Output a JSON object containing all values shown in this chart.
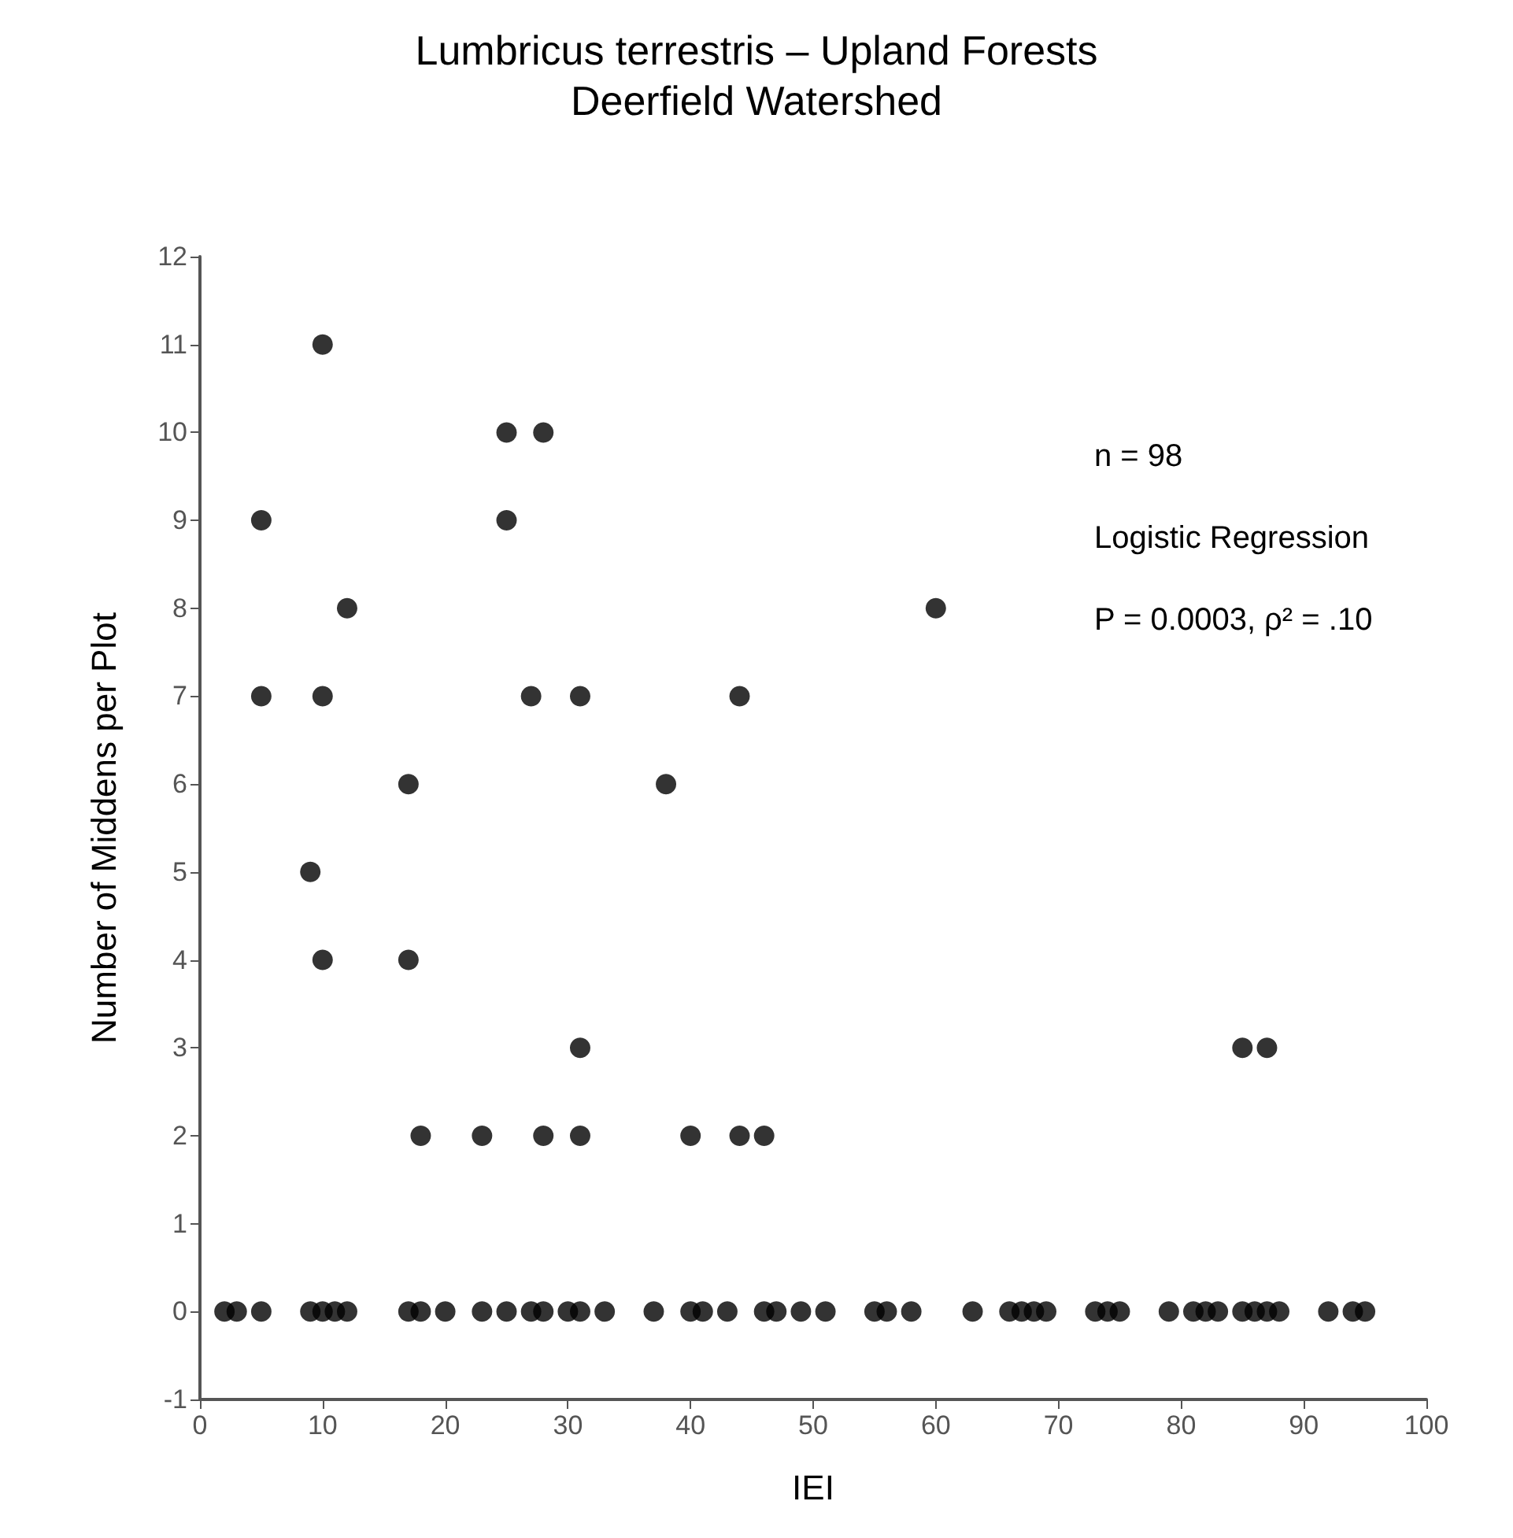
{
  "chart_data": {
    "type": "scatter",
    "title": "Lumbricus terrestris – Upland Forests",
    "subtitle": "Deerfield Watershed",
    "xlabel": "IEI",
    "ylabel": "Number of Middens per Plot",
    "annotations": [
      "n = 98",
      "Logistic Regression",
      "P = 0.0003, ρ² = .10"
    ],
    "x": [
      5,
      5,
      10,
      10,
      12,
      9,
      10,
      17,
      17,
      18,
      23,
      25,
      28,
      25,
      27,
      31,
      31,
      31,
      28,
      38,
      40,
      44,
      44,
      46,
      60,
      85,
      87,
      2,
      3,
      5,
      9,
      10,
      11,
      12,
      17,
      18,
      20,
      23,
      25,
      27,
      28,
      30,
      31,
      33,
      37,
      40,
      41,
      43,
      46,
      47,
      49,
      51,
      55,
      56,
      58,
      63,
      66,
      67,
      68,
      69,
      73,
      74,
      75,
      79,
      81,
      82,
      83,
      85,
      86,
      87,
      88,
      92,
      94,
      95
    ],
    "series": [
      {
        "color": "#000000",
        "values": [
          9,
          7,
          11,
          7,
          8,
          5,
          4,
          6,
          4,
          2,
          2,
          10,
          10,
          9,
          7,
          7,
          3,
          2,
          2,
          6,
          2,
          7,
          2,
          2,
          8,
          3,
          3,
          0,
          0,
          0,
          0,
          0,
          0,
          0,
          0,
          0,
          0,
          0,
          0,
          0,
          0,
          0,
          0,
          0,
          0,
          0,
          0,
          0,
          0,
          0,
          0,
          0,
          0,
          0,
          0,
          0,
          0,
          0,
          0,
          0,
          0,
          0,
          0,
          0,
          0,
          0,
          0,
          0,
          0,
          0,
          0,
          0,
          0,
          0
        ]
      }
    ],
    "xlim": [
      0,
      100
    ],
    "xticks": [
      0,
      10,
      20,
      30,
      40,
      50,
      60,
      70,
      80,
      90,
      100
    ],
    "ylim": [
      -1,
      12
    ],
    "yticks": [
      -1,
      0,
      1,
      2,
      3,
      4,
      5,
      6,
      7,
      8,
      9,
      10,
      11,
      12
    ],
    "grid": false,
    "marker": "circle"
  }
}
